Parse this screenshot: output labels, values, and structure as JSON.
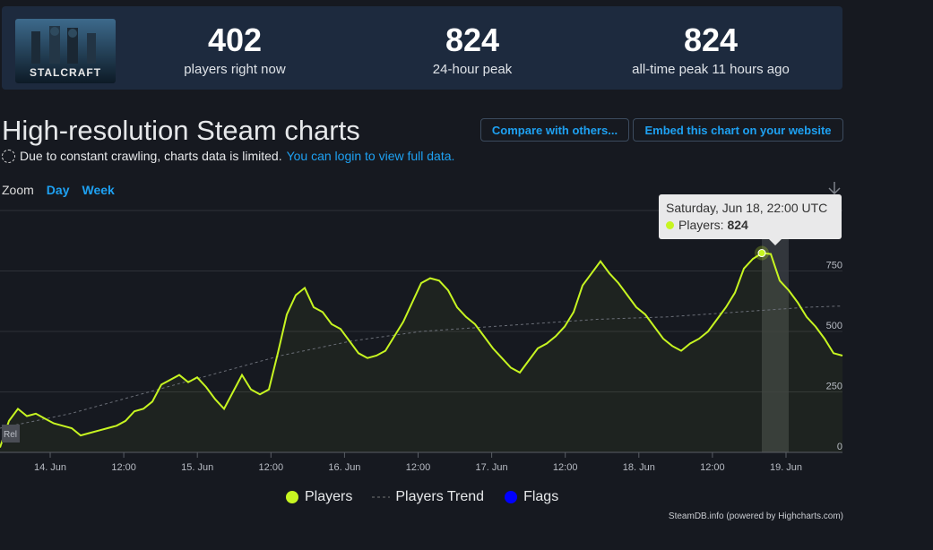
{
  "game": {
    "name": "STALCRAFT"
  },
  "stats": [
    {
      "value": "402",
      "label": "players right now"
    },
    {
      "value": "824",
      "label": "24-hour peak"
    },
    {
      "value": "824",
      "label": "all-time peak 11 hours ago"
    }
  ],
  "page": {
    "title": "High-resolution Steam charts",
    "notice": "Due to constant crawling, charts data is limited.",
    "login_link": "You can login to view full data."
  },
  "buttons": {
    "compare": "Compare with others...",
    "embed": "Embed this chart on your website"
  },
  "zoom": {
    "label": "Zoom",
    "day": "Day",
    "week": "Week"
  },
  "tooltip": {
    "date": "Saturday, Jun 18, 22:00 UTC",
    "series": "Players:",
    "value": "824"
  },
  "legend": {
    "players": "Players",
    "trend": "Players Trend",
    "flags": "Flags"
  },
  "credit": "SteamDB.info (powered by Highcharts.com)",
  "colors": {
    "players": "#c7f521",
    "flags": "#0000ff",
    "accent": "#1ea1f2"
  },
  "chart_data": {
    "type": "line",
    "x_start": "Jun 13, 18:00",
    "x_step_hours": 2,
    "x_ticks": [
      "14. Jun",
      "12:00",
      "15. Jun",
      "12:00",
      "16. Jun",
      "12:00",
      "17. Jun",
      "12:00",
      "18. Jun",
      "12:00",
      "19. Jun"
    ],
    "y_ticks": [
      "0",
      "250",
      "500",
      "750"
    ],
    "ylim": [
      0,
      1000
    ],
    "series": [
      {
        "name": "Players",
        "values": [
          20,
          130,
          180,
          150,
          160,
          140,
          120,
          110,
          100,
          70,
          80,
          90,
          100,
          110,
          130,
          170,
          180,
          210,
          280,
          300,
          320,
          290,
          310,
          270,
          220,
          180,
          250,
          320,
          260,
          240,
          260,
          410,
          570,
          650,
          680,
          600,
          580,
          530,
          510,
          460,
          410,
          390,
          400,
          420,
          480,
          540,
          620,
          700,
          720,
          710,
          670,
          600,
          560,
          530,
          480,
          430,
          390,
          350,
          330,
          380,
          430,
          450,
          480,
          520,
          580,
          690,
          740,
          790,
          740,
          700,
          650,
          600,
          570,
          520,
          470,
          440,
          420,
          450,
          470,
          500,
          550,
          600,
          660,
          760,
          800,
          824,
          820,
          710,
          670,
          620,
          560,
          520,
          470,
          410,
          400
        ]
      },
      {
        "name": "Players Trend",
        "values": [
          100,
          130,
          160,
          200,
          240,
          280,
          320,
          360,
          400,
          430,
          460,
          480,
          500,
          510,
          520,
          530,
          540,
          550,
          555,
          560,
          570,
          580,
          590,
          600,
          605
        ]
      }
    ]
  }
}
